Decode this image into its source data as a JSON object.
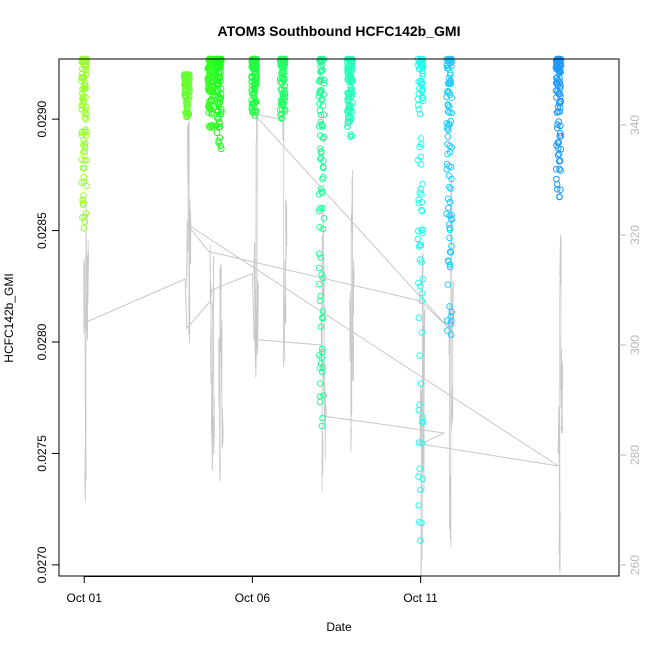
{
  "chart_data": {
    "type": "scatter",
    "title": "ATOM3 Southbound HCFC142b_GMI",
    "xlabel": "Date",
    "ylabel": "HCFC142b_GMI",
    "x_unit": "days since Oct 01",
    "xlim": [
      -0.75,
      15.9
    ],
    "ylim": [
      0.02695,
      0.02927
    ],
    "y2lim": [
      258,
      352
    ],
    "x_ticks": [
      {
        "value": 0,
        "label": "Oct 01"
      },
      {
        "value": 5,
        "label": "Oct 06"
      },
      {
        "value": 10,
        "label": "Oct 11"
      }
    ],
    "y_ticks": [
      {
        "value": 0.027,
        "label": "0.0270"
      },
      {
        "value": 0.0275,
        "label": "0.0275"
      },
      {
        "value": 0.028,
        "label": "0.0280"
      },
      {
        "value": 0.0285,
        "label": "0.0285"
      },
      {
        "value": 0.029,
        "label": "0.0290"
      }
    ],
    "y2_ticks": [
      {
        "value": 260,
        "label": "260"
      },
      {
        "value": 280,
        "label": "280"
      },
      {
        "value": 300,
        "label": "300"
      },
      {
        "value": 320,
        "label": "320"
      },
      {
        "value": 340,
        "label": "340"
      }
    ],
    "secondary_series_color": "#c8c8c8",
    "flights": [
      {
        "x": 0.0,
        "ymin": 0.02851,
        "ymax": 0.02927,
        "color": "#99ff33",
        "y2": [
          309,
          275,
          320,
          304,
          313
        ]
      },
      {
        "x": 3.05,
        "ymin": 0.029,
        "ymax": 0.0292,
        "color": "#66ff33",
        "y2": [
          317,
          335,
          303,
          321
        ]
      },
      {
        "x": 3.75,
        "ymin": 0.02895,
        "ymax": 0.02927,
        "color": "#33ff22",
        "y2": [
          313,
          300,
          290,
          283,
          302,
          310,
          285
        ]
      },
      {
        "x": 4.0,
        "ymin": 0.02885,
        "ymax": 0.02927,
        "color": "#22ff22",
        "y2": [
          295,
          282,
          308,
          298,
          288
        ]
      },
      {
        "x": 5.05,
        "ymin": 0.029,
        "ymax": 0.02927,
        "color": "#22ff44",
        "y2": [
          312,
          301,
          342,
          305
        ]
      },
      {
        "x": 5.9,
        "ymin": 0.029,
        "ymax": 0.02927,
        "color": "#22ff66",
        "y2": [
          343,
          303,
          309,
          322
        ]
      },
      {
        "x": 7.05,
        "ymin": 0.0276,
        "ymax": 0.02927,
        "color": "#22ff99",
        "y2": [
          302,
          280,
          320,
          310,
          290,
          286
        ]
      },
      {
        "x": 7.9,
        "ymin": 0.02892,
        "ymax": 0.02927,
        "color": "#22ffbb",
        "y2": [
          303,
          286,
          325,
          300,
          310
        ]
      },
      {
        "x": 10.0,
        "ymin": 0.02708,
        "ymax": 0.02927,
        "color": "#22ffee",
        "y2": [
          286,
          262,
          310,
          280,
          300
        ]
      },
      {
        "x": 10.85,
        "ymin": 0.02803,
        "ymax": 0.02927,
        "color": "#22ccff",
        "y2": [
          302,
          270,
          325,
          288,
          305
        ]
      },
      {
        "x": 14.1,
        "ymin": 0.02865,
        "ymax": 0.02927,
        "color": "#1a99ff",
        "y2": [
          283,
          265,
          314,
          295,
          290
        ]
      }
    ],
    "connector_path": [
      {
        "x": 0.0,
        "y2": 304
      },
      {
        "x": 3.0,
        "y2": 312
      },
      {
        "x": 3.05,
        "y2": 303
      },
      {
        "x": 3.75,
        "y2": 308
      },
      {
        "x": 3.8,
        "y2": 310
      },
      {
        "x": 5.0,
        "y2": 313
      },
      {
        "x": 5.05,
        "y2": 301
      },
      {
        "x": 7.05,
        "y2": 300
      },
      {
        "x": 7.2,
        "y2": 287
      },
      {
        "x": 10.7,
        "y2": 284
      },
      {
        "x": 10.0,
        "y2": 282
      },
      {
        "x": 14.1,
        "y2": 278
      },
      {
        "x": 3.05,
        "y2": 322
      },
      {
        "x": 3.7,
        "y2": 317
      },
      {
        "x": 10.0,
        "y2": 308
      },
      {
        "x": 10.85,
        "y2": 303
      },
      {
        "x": 5.05,
        "y2": 342
      },
      {
        "x": 5.9,
        "y2": 341
      }
    ]
  }
}
